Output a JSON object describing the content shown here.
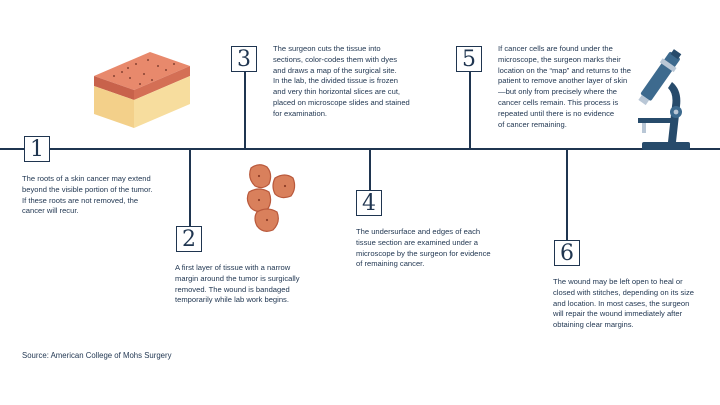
{
  "steps": [
    {
      "number": "1",
      "text": "The roots of a skin cancer may extend\nbeyond the visible portion of the tumor.\nIf these roots are not removed, the\ncancer will recur."
    },
    {
      "number": "2",
      "text": "A first layer of tissue with a narrow\nmargin around the tumor is surgically\nremoved. The wound is bandaged\ntemporarily while lab work begins."
    },
    {
      "number": "3",
      "text": "The surgeon cuts the tissue into\nsections, color-codes them with dyes\nand draws a map of the surgical site.\nIn the lab, the divided tissue is frozen\nand very thin horizontal slices are cut,\nplaced on microscope slides and stained\nfor examination."
    },
    {
      "number": "4",
      "text": "The undersurface and edges of each\ntissue section are examined under a\nmicroscope by the surgeon for evidence\nof remaining cancer."
    },
    {
      "number": "5",
      "text": "If cancer cells are found under the\nmicroscope, the surgeon marks their\nlocation on the “map” and returns to the\npatient to remove another layer of skin\n—but only from precisely where the\ncancer cells remain. This process is\nrepeated until there is no evidence\nof cancer remaining."
    },
    {
      "number": "6",
      "text": "The wound may be left open to heal or\nclosed with stitches, depending on its size\nand location. In most cases, the surgeon\nwill repair the wound immediately after\nobtaining clear margins."
    }
  ],
  "source": "Source: American College of Mohs Surgery",
  "icons": [
    "skin-layers-icon",
    "tissue-sections-icon",
    "microscope-icon"
  ],
  "colors": {
    "line": "#1f3550",
    "skin_top": "#e8896c",
    "skin_side": "#f3d08a",
    "tissue": "#d9805c",
    "microscope": "#274b6b"
  }
}
